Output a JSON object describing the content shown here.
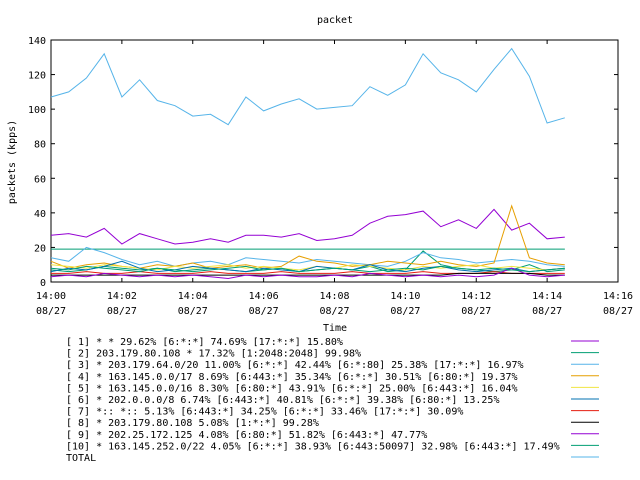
{
  "chart_data": {
    "type": "line",
    "title": "packet",
    "xlabel": "Time",
    "ylabel": "packets (kpps)",
    "ylim": [
      0,
      140
    ],
    "y_ticks": [
      0,
      20,
      40,
      60,
      80,
      100,
      120,
      140
    ],
    "x_range_minutes": [
      0,
      16
    ],
    "x_ticks": [
      {
        "time": "14:00",
        "date": "08/27"
      },
      {
        "time": "14:02",
        "date": "08/27"
      },
      {
        "time": "14:04",
        "date": "08/27"
      },
      {
        "time": "14:06",
        "date": "08/27"
      },
      {
        "time": "14:08",
        "date": "08/27"
      },
      {
        "time": "14:10",
        "date": "08/27"
      },
      {
        "time": "14:12",
        "date": "08/27"
      },
      {
        "time": "14:14",
        "date": "08/27"
      },
      {
        "time": "14:16",
        "date": "08/27"
      }
    ],
    "grid": false,
    "legend_position": "bottom",
    "x_minutes": [
      0,
      0.5,
      1,
      1.5,
      2,
      2.5,
      3,
      3.5,
      4,
      4.5,
      5,
      5.5,
      6,
      6.5,
      7,
      7.5,
      8,
      8.5,
      9,
      9.5,
      10,
      10.5,
      11,
      11.5,
      12,
      12.5,
      13,
      13.5,
      14,
      14.5
    ],
    "series": [
      {
        "name": "[ 1] * * 29.62%  [6:*:*] 74.69% [17:*:*] 15.80%",
        "color": "#9400d3",
        "values": [
          27,
          28,
          26,
          31,
          22,
          28,
          25,
          22,
          23,
          25,
          23,
          27,
          27,
          26,
          28,
          24,
          25,
          27,
          34,
          38,
          39,
          41,
          32,
          36,
          31,
          42,
          30,
          34,
          25,
          26
        ]
      },
      {
        "name": "[ 2] 203.179.80.108 * 17.32%  [1:2048:2048] 99.98%",
        "color": "#009e73",
        "values": [
          7,
          6,
          7,
          9,
          8,
          7,
          8,
          6,
          7,
          8,
          7,
          6,
          7,
          8,
          6,
          7,
          8,
          7,
          9,
          6,
          7,
          18,
          10,
          8,
          7,
          6,
          7,
          10,
          6,
          7
        ]
      },
      {
        "name": "[ 3] * 203.179.64.0/20 11.00%  [6:*:*] 42.44% [6:*:80] 25.38% [17:*:*] 16.97%",
        "color": "#56b4e9",
        "values": [
          14,
          12,
          20,
          17,
          13,
          10,
          12,
          9,
          11,
          12,
          10,
          14,
          13,
          12,
          11,
          13,
          12,
          11,
          10,
          9,
          12,
          17,
          14,
          13,
          11,
          12,
          13,
          12,
          10,
          9
        ]
      },
      {
        "name": "[ 4] * 163.145.0.0/17 8.69%  [6:443:*] 35.34% [6:*:*] 30.51% [6:80:*] 19.37%",
        "color": "#e69f00",
        "values": [
          12,
          8,
          10,
          11,
          9,
          8,
          10,
          9,
          11,
          8,
          9,
          10,
          8,
          9,
          15,
          12,
          11,
          9,
          10,
          12,
          11,
          10,
          12,
          10,
          9,
          11,
          44,
          14,
          11,
          10
        ]
      },
      {
        "name": "[ 5] * 163.145.0.0/16 8.30%  [6:80:*] 43.91% [6:*:*] 25.00% [6:443:*] 16.04%",
        "color": "#f0e442",
        "values": [
          10,
          9,
          8,
          10,
          9,
          8,
          7,
          9,
          8,
          9,
          10,
          8,
          9,
          8,
          7,
          9,
          8,
          10,
          9,
          8,
          7,
          9,
          8,
          9,
          10,
          8,
          9,
          8,
          7,
          8
        ]
      },
      {
        "name": "[ 6] * 202.0.0.0/8 6.74%  [6:443:*] 40.81% [6:*:*] 39.38% [6:80:*] 13.25%",
        "color": "#0072b2",
        "values": [
          6,
          8,
          7,
          9,
          12,
          8,
          6,
          7,
          9,
          8,
          7,
          6,
          8,
          7,
          6,
          9,
          8,
          7,
          10,
          7,
          6,
          8,
          9,
          7,
          6,
          7,
          8,
          6,
          7,
          8
        ]
      },
      {
        "name": "[ 7] *:: *:: 5.13%  [6:443:*] 34.25% [6:*:*] 33.46% [17:*:*] 30.09%",
        "color": "#e51e10",
        "values": [
          5,
          5,
          6,
          5,
          5,
          6,
          5,
          5,
          5,
          6,
          5,
          5,
          5,
          6,
          5,
          5,
          5,
          6,
          5,
          5,
          5,
          6,
          5,
          5,
          5,
          6,
          5,
          5,
          5,
          5
        ]
      },
      {
        "name": "[ 8] * 203.179.80.108 5.08%  [1:*:*] 99.28%",
        "color": "#000000",
        "values": [
          4,
          4,
          4,
          4,
          4,
          4,
          4,
          4,
          4,
          4,
          4,
          4,
          4,
          4,
          4,
          4,
          4,
          4,
          4,
          4,
          4,
          4,
          4,
          5,
          5,
          5,
          5,
          5,
          4,
          4
        ]
      },
      {
        "name": "[ 9] * 202.25.172.125 4.08%  [6:80:*] 51.82% [6:443:*] 47.77%",
        "color": "#9400d3",
        "values": [
          3,
          4,
          3,
          5,
          4,
          3,
          4,
          3,
          4,
          3,
          2,
          4,
          3,
          4,
          3,
          3,
          4,
          3,
          5,
          4,
          3,
          4,
          3,
          4,
          3,
          4,
          8,
          4,
          3,
          4
        ]
      },
      {
        "name": "[10] * 163.145.252.0/22 4.05%  [6:*:*] 38.93% [6:443:50097] 32.98% [6:443:*] 17.49%",
        "color": "#009e73",
        "values": [
          8,
          7,
          9,
          8,
          7,
          6,
          8,
          7,
          6,
          7,
          8,
          9,
          7,
          8,
          6,
          7,
          8,
          7,
          6,
          7,
          8,
          7,
          9,
          8,
          7,
          8,
          7,
          6,
          7,
          8
        ]
      },
      {
        "name": "TOTAL",
        "color": "#56b4e9",
        "values": [
          107,
          110,
          118,
          132,
          107,
          117,
          105,
          102,
          96,
          97,
          91,
          107,
          99,
          103,
          106,
          100,
          101,
          102,
          113,
          108,
          114,
          132,
          121,
          117,
          110,
          123,
          135,
          119,
          92,
          95
        ]
      }
    ],
    "reference_lines": [
      {
        "value": 19,
        "color": "#009e73"
      }
    ]
  }
}
